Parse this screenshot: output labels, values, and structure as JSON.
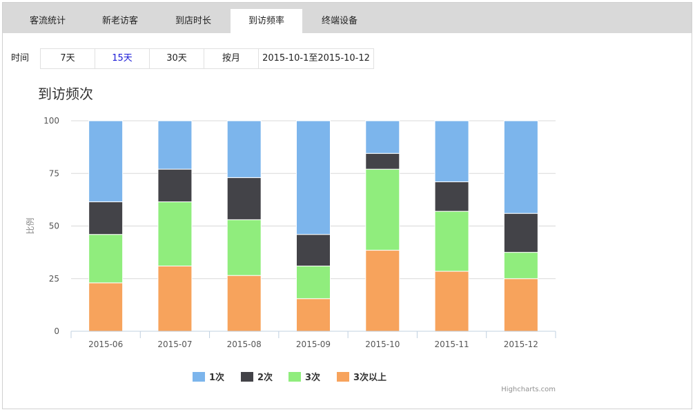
{
  "tabs": [
    {
      "label": "客流统计",
      "active": false
    },
    {
      "label": "新老访客",
      "active": false
    },
    {
      "label": "到店时长",
      "active": false
    },
    {
      "label": "到访频率",
      "active": true
    },
    {
      "label": "终端设备",
      "active": false
    }
  ],
  "filter": {
    "label": "时间",
    "options": [
      {
        "label": "7天",
        "selected": false
      },
      {
        "label": "15天",
        "selected": true
      },
      {
        "label": "30天",
        "selected": false
      },
      {
        "label": "按月",
        "selected": false
      },
      {
        "label": "2015-10-1至2015-10-12",
        "selected": false
      }
    ]
  },
  "chart_data": {
    "type": "bar",
    "stacked": true,
    "title": "到访频次",
    "ylabel": "比例",
    "xlabel": "",
    "ylim": [
      0,
      100
    ],
    "yticks": [
      0,
      25,
      50,
      75,
      100
    ],
    "grid": true,
    "legend_position": "bottom",
    "credits": "Highcharts.com",
    "categories": [
      "2015-06",
      "2015-07",
      "2015-08",
      "2015-09",
      "2015-10",
      "2015-11",
      "2015-12"
    ],
    "series": [
      {
        "name": "1次",
        "color": "#7cb5ec",
        "values": [
          38.5,
          23,
          27,
          54,
          15.5,
          29,
          44
        ]
      },
      {
        "name": "2次",
        "color": "#434348",
        "values": [
          15.5,
          15.5,
          20,
          15,
          7.5,
          14,
          18.5
        ]
      },
      {
        "name": "3次",
        "color": "#90ed7d",
        "values": [
          23,
          30.5,
          26.5,
          15.5,
          38.5,
          28.5,
          12.5
        ]
      },
      {
        "name": "3次以上",
        "color": "#f7a35c",
        "values": [
          23,
          31,
          26.5,
          15.5,
          38.5,
          28.5,
          25
        ]
      }
    ]
  }
}
